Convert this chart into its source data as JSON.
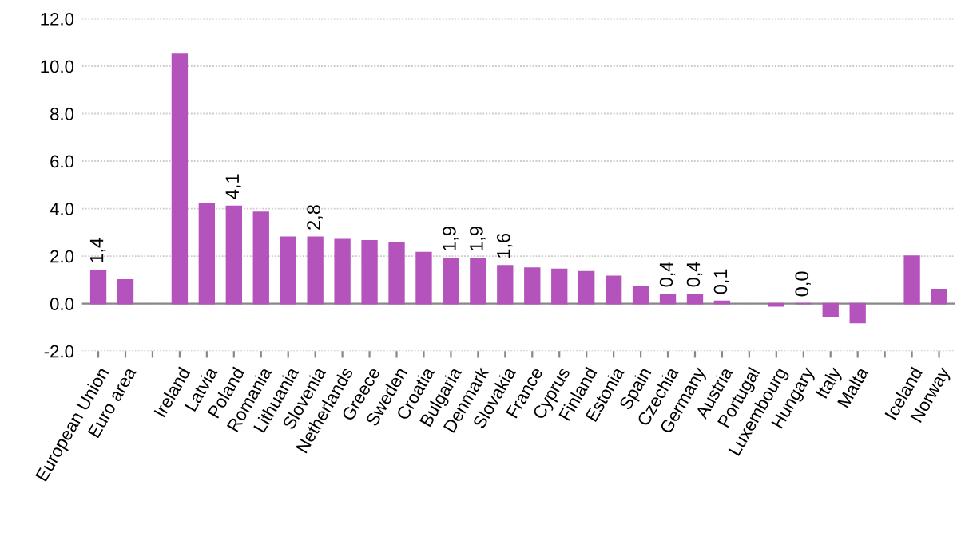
{
  "chart_data": {
    "type": "bar",
    "categories": [
      "European Union",
      "Euro area",
      null,
      "Ireland",
      "Latvia",
      "Poland",
      "Romania",
      "Lithuania",
      "Slovenia",
      "Netherlands",
      "Greece",
      "Sweden",
      "Croatia",
      "Bulgaria",
      "Denmark",
      "Slovakia",
      "France",
      "Cyprus",
      "Finland",
      "Estonia",
      "Spain",
      "Czechia",
      "Germany",
      "Austria",
      "Portugal",
      "Luxembourg",
      "Hungary",
      "Italy",
      "Malta",
      null,
      "Iceland",
      "Norway"
    ],
    "values": [
      1.4,
      1.0,
      null,
      10.5,
      4.2,
      4.1,
      3.85,
      2.8,
      2.8,
      2.7,
      2.65,
      2.55,
      2.15,
      1.9,
      1.9,
      1.6,
      1.5,
      1.45,
      1.35,
      1.15,
      0.7,
      0.4,
      0.4,
      0.1,
      null,
      -0.1,
      0.0,
      -0.55,
      -0.8,
      null,
      2.0,
      0.6
    ],
    "value_labels": [
      "1,4",
      null,
      null,
      null,
      null,
      "4,1",
      null,
      null,
      "2,8",
      null,
      null,
      null,
      null,
      "1,9",
      "1,9",
      "1,6",
      null,
      null,
      null,
      null,
      null,
      "0,4",
      "0,4",
      "0,1",
      null,
      null,
      "0,0",
      null,
      null,
      null,
      null,
      null
    ],
    "color": "#b553bd",
    "ylim": [
      -2.0,
      12.0
    ],
    "yticks": [
      {
        "value": -2,
        "label": "-2.0"
      },
      {
        "value": 0,
        "label": "0.0"
      },
      {
        "value": 2,
        "label": "2.0"
      },
      {
        "value": 4,
        "label": "4.0"
      },
      {
        "value": 6,
        "label": "6.0"
      },
      {
        "value": 8,
        "label": "8.0"
      },
      {
        "value": 10,
        "label": "10.0"
      },
      {
        "value": 12,
        "label": "12.0"
      }
    ],
    "grid": "y"
  }
}
